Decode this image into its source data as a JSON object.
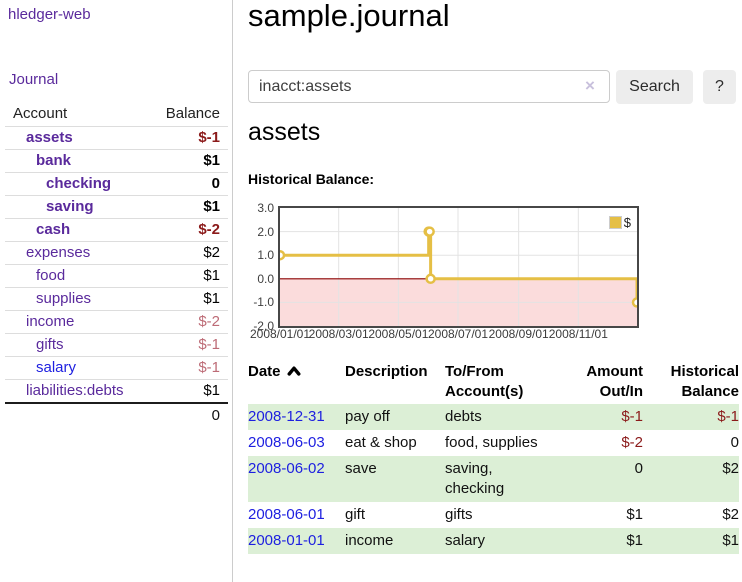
{
  "sidebar": {
    "brand": "hledger-web",
    "nav_journal": "Journal",
    "accounts_table": {
      "headers": {
        "account": "Account",
        "balance": "Balance"
      },
      "rows": [
        {
          "name": "assets",
          "depth": 1,
          "bold": true,
          "link": "purple",
          "balance": "$-1",
          "tone": "neg-strong"
        },
        {
          "name": "bank",
          "depth": 2,
          "bold": true,
          "link": "purple",
          "balance": "$1",
          "tone": "pos"
        },
        {
          "name": "checking",
          "depth": 3,
          "bold": true,
          "link": "purple",
          "balance": "0",
          "tone": "pos"
        },
        {
          "name": "saving",
          "depth": 3,
          "bold": true,
          "link": "purple",
          "balance": "$1",
          "tone": "pos"
        },
        {
          "name": "cash",
          "depth": 2,
          "bold": true,
          "link": "purple",
          "balance": "$-2",
          "tone": "neg-strong"
        },
        {
          "name": "expenses",
          "depth": 1,
          "bold": false,
          "link": "purple",
          "balance": "$2",
          "tone": "pos"
        },
        {
          "name": "food",
          "depth": 2,
          "bold": false,
          "link": "purple",
          "balance": "$1",
          "tone": "pos"
        },
        {
          "name": "supplies",
          "depth": 2,
          "bold": false,
          "link": "purple",
          "balance": "$1",
          "tone": "pos"
        },
        {
          "name": "income",
          "depth": 1,
          "bold": false,
          "link": "purple",
          "balance": "$-2",
          "tone": "neg-soft"
        },
        {
          "name": "gifts",
          "depth": 2,
          "bold": false,
          "link": "purple",
          "balance": "$-1",
          "tone": "neg-soft"
        },
        {
          "name": "salary",
          "depth": 2,
          "bold": false,
          "link": "blue",
          "balance": "$-1",
          "tone": "neg-soft"
        },
        {
          "name": "liabilities:debts",
          "depth": 1,
          "bold": false,
          "link": "purple",
          "balance": "$1",
          "tone": "pos"
        }
      ],
      "total": "0"
    }
  },
  "main": {
    "title": "sample.journal",
    "search": {
      "value": "inacct:assets",
      "clear_icon": "×",
      "button_label": "Search",
      "help_label": "?"
    },
    "account_heading": "assets",
    "chart_label": "Historical Balance:"
  },
  "register_table": {
    "headers": [
      {
        "label": "Date",
        "sortable": true,
        "sort": "ascending"
      },
      {
        "label": "Description"
      },
      {
        "label": "To/From Account(s)"
      },
      {
        "label": "Amount Out/In",
        "align": "right"
      },
      {
        "label": "Historical Balance",
        "align": "right"
      }
    ],
    "rows": [
      {
        "date": "2008-12-31",
        "description": "pay off",
        "accounts": "debts",
        "amount": "$-1",
        "amount_negative": true,
        "balance": "$-1",
        "balance_negative": true
      },
      {
        "date": "2008-06-03",
        "description": "eat & shop",
        "accounts": "food, supplies",
        "amount": "$-2",
        "amount_negative": true,
        "balance": "0",
        "balance_negative": false
      },
      {
        "date": "2008-06-02",
        "description": "save",
        "accounts": "saving, checking",
        "amount": "0",
        "amount_negative": false,
        "balance": "$2",
        "balance_negative": false
      },
      {
        "date": "2008-06-01",
        "description": "gift",
        "accounts": "gifts",
        "amount": "$1",
        "amount_negative": false,
        "balance": "$2",
        "balance_negative": false
      },
      {
        "date": "2008-01-01",
        "description": "income",
        "accounts": "salary",
        "amount": "$1",
        "amount_negative": false,
        "balance": "$1",
        "balance_negative": false
      }
    ]
  },
  "chart_data": {
    "type": "line",
    "title": "Historical Balance:",
    "step": true,
    "series": [
      {
        "name": "$",
        "color": "#e5bf45",
        "points": [
          {
            "date": "2008-01-01",
            "value": 1
          },
          {
            "date": "2008-06-01",
            "value": 2
          },
          {
            "date": "2008-06-02",
            "value": 2
          },
          {
            "date": "2008-06-03",
            "value": 0
          },
          {
            "date": "2008-12-31",
            "value": -1
          }
        ]
      }
    ],
    "xrange": [
      "2008-01-01",
      "2008-12-31"
    ],
    "ylim": [
      -2,
      3
    ],
    "yticks": [
      3.0,
      2.0,
      1.0,
      0.0,
      -1.0,
      -2.0
    ],
    "ytick_labels": [
      "3.0",
      "2.0",
      "1.0",
      "0.0",
      "-1.0",
      "-2.0"
    ],
    "xtick_dates": [
      "2008-01-01",
      "2008-03-01",
      "2008-05-01",
      "2008-07-01",
      "2008-09-01",
      "2008-11-01"
    ],
    "xtick_labels": [
      "2008/01/01",
      "2008/03/01",
      "2008/05/01",
      "2008/07/01",
      "2008/09/01",
      "2008/11/01"
    ],
    "legend": {
      "label": "$",
      "position": "top-right"
    },
    "grid": true,
    "grid_color": "#e3e3e3",
    "negative_region_color": "#fbdcdc",
    "zero_line_color": "#8b0000"
  },
  "colors": {
    "link_purple": "#5a2a9c",
    "link_blue": "#1d1fe0",
    "negative_strong": "#8b1a1a",
    "negative_soft": "#bd6b76",
    "stripe_green": "#dcefd6",
    "sidebar_divider": "#cccccc",
    "button_bg": "#ededed"
  }
}
